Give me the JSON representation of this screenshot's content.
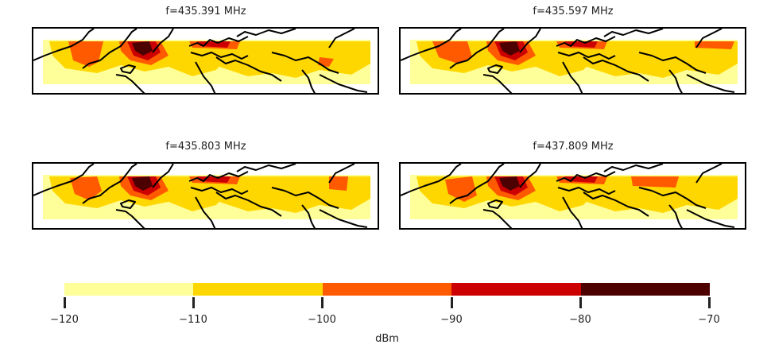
{
  "panels": [
    {
      "title": "f=435.391 MHz"
    },
    {
      "title": "f=435.597 MHz"
    },
    {
      "title": "f=435.803 MHz"
    },
    {
      "title": "f=437.809 MHz"
    }
  ],
  "colorbar": {
    "label": "dBm",
    "ticks": [
      "−120",
      "−110",
      "−100",
      "−90",
      "−80",
      "−70"
    ],
    "levels": [
      {
        "range": [
          -120,
          -110
        ],
        "color": "#ffff99"
      },
      {
        "range": [
          -110,
          -100
        ],
        "color": "#ffd700"
      },
      {
        "range": [
          -100,
          -90
        ],
        "color": "#ff5a00"
      },
      {
        "range": [
          -90,
          -80
        ],
        "color": "#cc0000"
      },
      {
        "range": [
          -80,
          -70
        ],
        "color": "#4d0000"
      }
    ]
  },
  "colors": {
    "level_1": "#ffff99",
    "level_2": "#ffd700",
    "level_3": "#ff5a00",
    "level_4": "#cc0000",
    "level_5": "#4d0000",
    "coastline": "#000000"
  }
}
